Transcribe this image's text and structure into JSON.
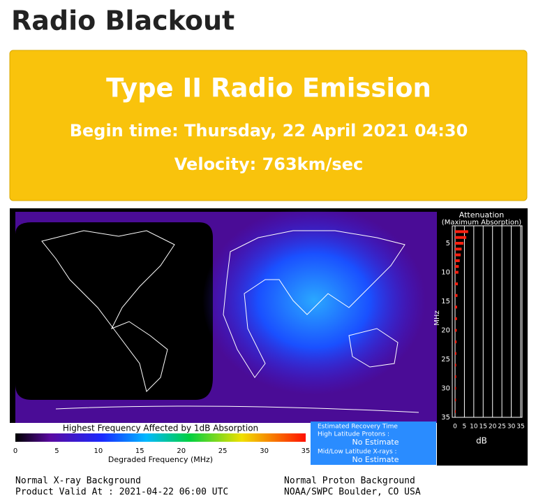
{
  "header": {
    "title": "Radio Blackout"
  },
  "alert": {
    "title": "Type II Radio Emission",
    "begin_time": "Begin time: Thursday, 22 April 2021 04:30",
    "velocity": "Velocity: 763km/sec"
  },
  "map": {
    "attenuation": {
      "title": "Attenuation",
      "subtitle": "(Maximum Absorption)",
      "y_label": "MHz",
      "yticks": [
        5,
        10,
        15,
        20,
        25,
        30,
        35
      ],
      "x_label": "dB",
      "xticks": [
        0,
        5,
        10,
        15,
        20,
        25,
        30,
        35
      ],
      "bars_mhz": [
        3,
        4,
        5,
        6,
        7,
        8,
        9,
        10,
        12,
        14,
        16,
        18,
        20,
        22,
        24,
        26,
        28,
        30,
        32,
        34
      ],
      "bars_db": [
        7,
        6,
        4.5,
        3.5,
        3,
        2.5,
        2,
        1.8,
        1.5,
        1.3,
        1.1,
        1,
        0.9,
        0.8,
        0.7,
        0.6,
        0.6,
        0.5,
        0.5,
        0.4
      ]
    },
    "colorbar": {
      "title": "Highest Frequency Affected by 1dB Absorption",
      "ticks": [
        0,
        5,
        10,
        15,
        20,
        25,
        30,
        35
      ],
      "label": "Degraded Frequency (MHz)"
    },
    "recovery": {
      "title": "Estimated Recovery Time",
      "high_lat_label": "High Latitude Protons :",
      "high_lat_value": "No Estimate",
      "mid_label": "Mid/Low Latitude X-rays :",
      "mid_value": "No Estimate"
    },
    "footer": {
      "xray": "Normal X-ray Background",
      "valid": "Product Valid At : 2021-04-22 06:00 UTC",
      "proton": "Normal Proton Background",
      "source": "NOAA/SWPC Boulder, CO USA"
    }
  }
}
